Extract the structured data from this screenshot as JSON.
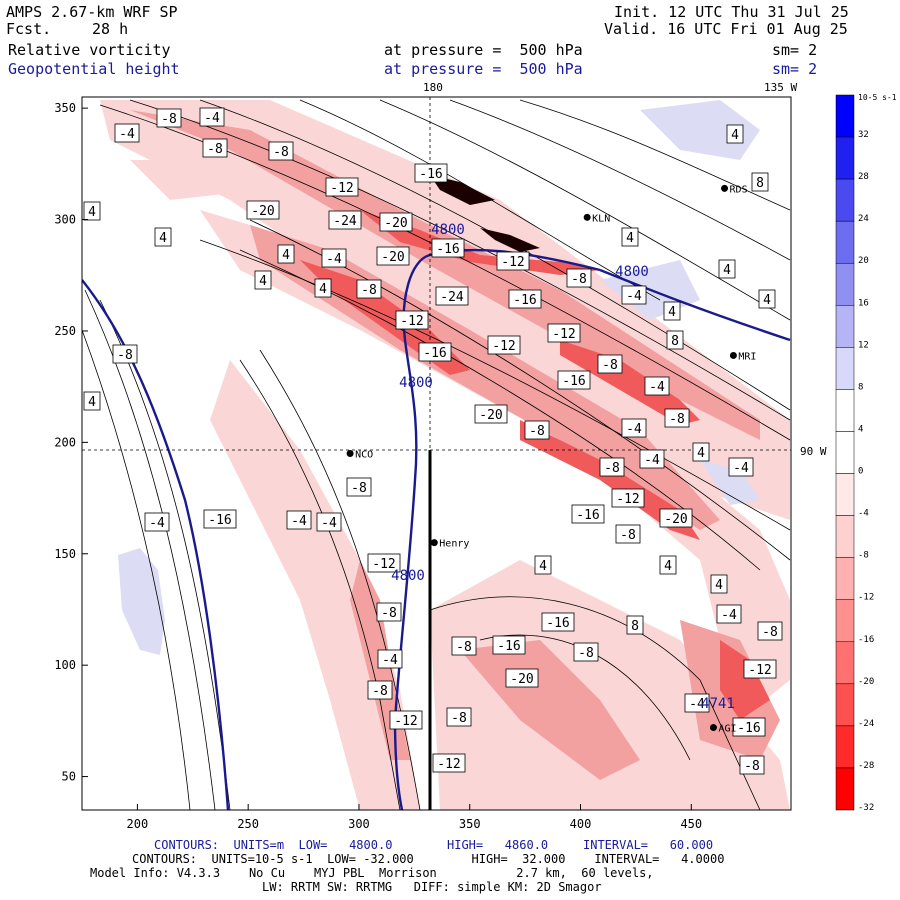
{
  "header": {
    "model": "AMPS 2.67-km WRF SP",
    "fcst_label": "Fcst.",
    "fcst_value": "28 h",
    "init": "Init. 12 UTC Thu 31 Jul 25",
    "valid": "Valid. 16 UTC Fri 01 Aug 25",
    "field1": "Relative vorticity",
    "field1_level": "at pressure =  500 hPa",
    "field1_sm": "sm= 2",
    "field2": "Geopotential height",
    "field2_level": "at pressure =  500 hPa",
    "field2_sm": "sm= 2"
  },
  "map": {
    "top_lon_label": "180",
    "top_right_lon_label": "135 W",
    "right_lat_label": "90 W",
    "x_ticks": [
      "200",
      "250",
      "300",
      "350",
      "400",
      "450"
    ],
    "y_ticks": [
      "350",
      "300",
      "250",
      "200",
      "150",
      "100",
      "50"
    ],
    "stations": [
      {
        "name": "RDS",
        "x": 465,
        "y": 314
      },
      {
        "name": "KLN",
        "x": 403,
        "y": 301
      },
      {
        "name": "MRI",
        "x": 469,
        "y": 239
      },
      {
        "name": "NCO",
        "x": 296,
        "y": 195
      },
      {
        "name": "Henry",
        "x": 334,
        "y": 155
      },
      {
        "name": "AGI",
        "x": 460,
        "y": 72
      }
    ],
    "height_labels": [
      "4800",
      "4800",
      "4800",
      "4800",
      "4741"
    ],
    "vorticity_labels": [
      "-4",
      "-8",
      "-4",
      "-8",
      "-8",
      "-12",
      "-16",
      "-20",
      "-24",
      "-20",
      "-16",
      "-12",
      "-8",
      "-4",
      "4",
      "8",
      "4",
      "4",
      "4",
      "8",
      "4",
      "4",
      "4",
      "4",
      "4",
      "4",
      "-4",
      "-8",
      "-12",
      "-16",
      "-20",
      "-24",
      "-16",
      "-12",
      "-8",
      "-4",
      "-8",
      "-12",
      "-16",
      "-20",
      "-8",
      "-4",
      "-4",
      "4",
      "-4",
      "-8",
      "-12",
      "-20",
      "-16",
      "-8",
      "-8",
      "-4",
      "-12",
      "-8",
      "-4",
      "-8",
      "-12",
      "-8",
      "-12",
      "-8",
      "-16",
      "-20",
      "-16",
      "-8",
      "4",
      "8",
      "4",
      "4",
      "-4",
      "-8",
      "-12",
      "-16",
      "-4",
      "-8",
      "4",
      "-8",
      "-4",
      "-16",
      "-4"
    ],
    "colors": {
      "neg_strong": "#ff1a1a",
      "neg_mid": "#f07a7a",
      "neg_light": "#fbd3d3",
      "pos_light": "#dcdcf5",
      "pos_strong": "#1a1aff",
      "height_contour": "#1a1a8c"
    }
  },
  "colorbar": {
    "unit": "10-5 s-1",
    "labels": [
      "32",
      "28",
      "24",
      "20",
      "16",
      "12",
      "8",
      "4",
      "0",
      "-4",
      "-8",
      "-12",
      "-16",
      "-20",
      "-24",
      "-28",
      "-32"
    ],
    "colors": [
      "#0000ff",
      "#2020f0",
      "#4a4af0",
      "#6d6df0",
      "#9090f2",
      "#b4b4f6",
      "#d8d8fa",
      "#ffffff",
      "#ffffff",
      "#ffe8e8",
      "#ffd0d0",
      "#ffb0b0",
      "#ff9090",
      "#ff7070",
      "#ff5050",
      "#ff2a2a",
      "#ff0000"
    ]
  },
  "footer": {
    "line1_label1": "CONTOURS:  UNITS=m  LOW=   4800.0",
    "line1_high": "HIGH=   4860.0",
    "line1_interval": "INTERVAL=   60.000",
    "line2": "CONTOURS:  UNITS=10-5 s-1  LOW= -32.000        HIGH=  32.000    INTERVAL=   4.0000",
    "line3": "Model Info: V4.3.3    No Cu    MYJ PBL  Morrison           2.7 km,  60 levels,",
    "line4": "LW: RRTM SW: RRTMG   DIFF: simple KM: 2D Smagor"
  }
}
